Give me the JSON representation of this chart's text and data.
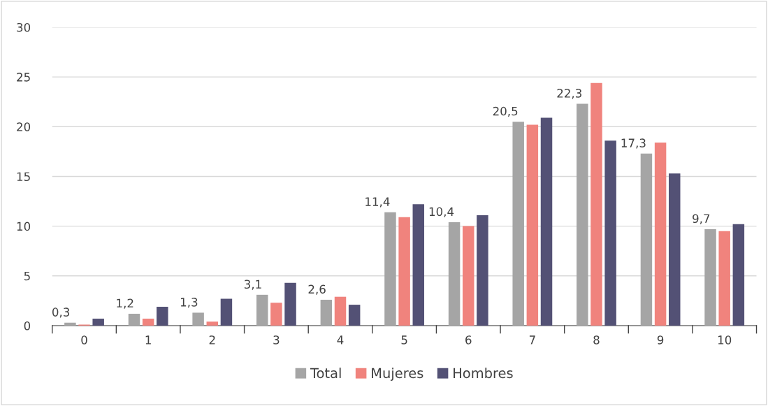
{
  "chart_data": {
    "type": "bar",
    "categories": [
      "0",
      "1",
      "2",
      "3",
      "4",
      "5",
      "6",
      "7",
      "8",
      "9",
      "10"
    ],
    "series": [
      {
        "name": "Total",
        "color": "#a5a5a5",
        "values": [
          0.3,
          1.2,
          1.3,
          3.1,
          2.6,
          11.4,
          10.4,
          20.5,
          22.3,
          17.3,
          9.7
        ],
        "value_labels": [
          "0,3",
          "1,2",
          "1,3",
          "3,1",
          "2,6",
          "11,4",
          "10,4",
          "20,5",
          "22,3",
          "17,3",
          "9,7"
        ]
      },
      {
        "name": "Mujeres",
        "color": "#f0837d",
        "values": [
          0.1,
          0.7,
          0.4,
          2.3,
          2.9,
          10.9,
          10.0,
          20.2,
          24.4,
          18.4,
          9.5
        ]
      },
      {
        "name": "Hombres",
        "color": "#535175",
        "values": [
          0.7,
          1.9,
          2.7,
          4.3,
          2.1,
          12.2,
          11.1,
          20.9,
          18.6,
          15.3,
          10.2
        ]
      }
    ],
    "ylim": [
      0,
      30
    ],
    "yticks": [
      0,
      5,
      10,
      15,
      20,
      25,
      30
    ],
    "grid": "y",
    "legend": "bottom"
  }
}
